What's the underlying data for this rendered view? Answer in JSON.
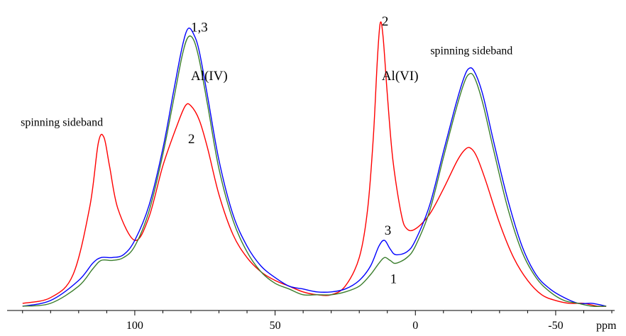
{
  "chart_data": {
    "type": "line",
    "title": "",
    "xlabel": "ppm",
    "ylabel": "",
    "xlim": [
      145,
      -70
    ],
    "ylim": [
      0,
      1.05
    ],
    "x_reversed": true,
    "grid": false,
    "legend": "none",
    "x_ticks": [
      {
        "value": 100,
        "label": "100"
      },
      {
        "value": 50,
        "label": "50"
      },
      {
        "value": 0,
        "label": "0"
      },
      {
        "value": -50,
        "label": "-50"
      }
    ],
    "series": [
      {
        "color": "#ff0000",
        "x": [
          140,
          130,
          122,
          116,
          113,
          111,
          109,
          106,
          100,
          95,
          90,
          85,
          82,
          80,
          77,
          74,
          70,
          65,
          60,
          55,
          50,
          45,
          40,
          35,
          30,
          25,
          20,
          17,
          15,
          13.5,
          12.5,
          11.5,
          10,
          8,
          5,
          3,
          0,
          -5,
          -10,
          -15,
          -18,
          -20,
          -22,
          -25,
          -30,
          -35,
          -40,
          -45,
          -50,
          -55,
          -60,
          -65,
          -68
        ],
        "y": [
          0.02,
          0.04,
          0.12,
          0.36,
          0.58,
          0.6,
          0.5,
          0.35,
          0.24,
          0.32,
          0.5,
          0.64,
          0.71,
          0.71,
          0.66,
          0.56,
          0.4,
          0.26,
          0.18,
          0.13,
          0.1,
          0.08,
          0.06,
          0.05,
          0.05,
          0.08,
          0.18,
          0.35,
          0.6,
          0.88,
          1.0,
          0.95,
          0.75,
          0.52,
          0.33,
          0.28,
          0.28,
          0.33,
          0.42,
          0.52,
          0.56,
          0.56,
          0.53,
          0.45,
          0.3,
          0.18,
          0.1,
          0.05,
          0.03,
          0.02,
          0.02,
          0.01,
          0.01
        ]
      },
      {
        "color": "#0000ff",
        "x": [
          140,
          130,
          120,
          115,
          112,
          108,
          104,
          100,
          95,
          90,
          86,
          83,
          81,
          79,
          77,
          74,
          70,
          65,
          60,
          55,
          50,
          45,
          40,
          35,
          30,
          25,
          20,
          16,
          13,
          11,
          9,
          7,
          3,
          0,
          -5,
          -10,
          -14,
          -17,
          -19,
          -21,
          -24,
          -28,
          -33,
          -38,
          -43,
          -48,
          -53,
          -58,
          -63,
          -68
        ],
        "y": [
          0.01,
          0.03,
          0.1,
          0.16,
          0.18,
          0.18,
          0.19,
          0.24,
          0.36,
          0.56,
          0.77,
          0.92,
          0.98,
          0.96,
          0.9,
          0.74,
          0.52,
          0.33,
          0.22,
          0.15,
          0.11,
          0.08,
          0.07,
          0.06,
          0.06,
          0.07,
          0.1,
          0.15,
          0.22,
          0.24,
          0.21,
          0.19,
          0.2,
          0.24,
          0.36,
          0.55,
          0.7,
          0.8,
          0.84,
          0.83,
          0.75,
          0.58,
          0.38,
          0.22,
          0.12,
          0.07,
          0.04,
          0.02,
          0.02,
          0.01
        ]
      },
      {
        "color": "#3a7d2c",
        "x": [
          140,
          130,
          120,
          115,
          112,
          108,
          104,
          100,
          95,
          90,
          86,
          83,
          81,
          79,
          77,
          74,
          70,
          65,
          60,
          55,
          50,
          45,
          40,
          35,
          30,
          25,
          20,
          16,
          13,
          11,
          9,
          7,
          3,
          0,
          -5,
          -10,
          -14,
          -17,
          -19,
          -21,
          -24,
          -28,
          -33,
          -38,
          -43,
          -48,
          -53,
          -58,
          -63,
          -68
        ],
        "y": [
          0.01,
          0.02,
          0.08,
          0.14,
          0.17,
          0.17,
          0.18,
          0.22,
          0.34,
          0.54,
          0.74,
          0.89,
          0.95,
          0.94,
          0.87,
          0.71,
          0.49,
          0.31,
          0.2,
          0.13,
          0.09,
          0.07,
          0.05,
          0.05,
          0.05,
          0.06,
          0.08,
          0.12,
          0.16,
          0.18,
          0.17,
          0.16,
          0.18,
          0.22,
          0.34,
          0.53,
          0.68,
          0.78,
          0.82,
          0.81,
          0.72,
          0.55,
          0.35,
          0.2,
          0.11,
          0.06,
          0.03,
          0.02,
          0.01,
          0.01
        ]
      }
    ],
    "annotations": [
      {
        "text": "1,3",
        "x": 80,
        "y": 0.97,
        "size": "large"
      },
      {
        "text": "Al(IV)",
        "x": 80,
        "y": 0.8,
        "size": "large"
      },
      {
        "text": "2",
        "x": 81,
        "y": 0.58,
        "size": "large"
      },
      {
        "text": "spinning sideband",
        "x": 126,
        "y": 0.64,
        "size": "small"
      },
      {
        "text": "2",
        "x": 12,
        "y": 0.99,
        "size": "large"
      },
      {
        "text": "Al(VI)",
        "x": 12,
        "y": 0.8,
        "size": "large"
      },
      {
        "text": "3",
        "x": 11,
        "y": 0.26,
        "size": "large"
      },
      {
        "text": "1",
        "x": 9,
        "y": 0.09,
        "size": "large"
      },
      {
        "text": "spinning sideband",
        "x": -20,
        "y": 0.89,
        "size": "small"
      }
    ]
  }
}
